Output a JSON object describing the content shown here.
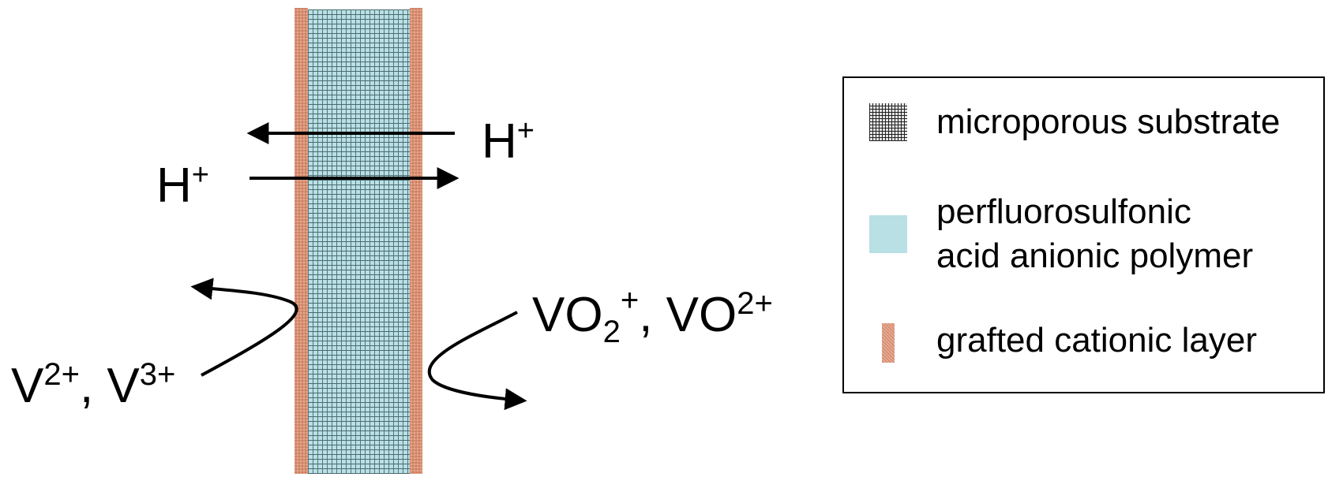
{
  "labels": {
    "h_left": "H",
    "h_left_sup": "+",
    "h_right": "H",
    "h_right_sup": "+",
    "vo2": "VO",
    "vo2_sub": "2",
    "vo2_sup": "+",
    "vo2_sep": ", ",
    "vo": "VO",
    "vo_sup": "2+",
    "v2": "V",
    "v2_sup": "2+",
    "v_sep": ", ",
    "v3": "V",
    "v3_sup": "3+"
  },
  "legend": {
    "items": [
      {
        "label": "microporous substrate"
      },
      {
        "label": "perfluorosulfonic"
      },
      {
        "label": "acid anionic polymer"
      },
      {
        "label": "grafted cationic layer"
      }
    ]
  },
  "colors": {
    "polymer": "#b9e0e4",
    "grafted_layer": "#d98f72",
    "grid_lines": "#333333",
    "text": "#000000"
  }
}
